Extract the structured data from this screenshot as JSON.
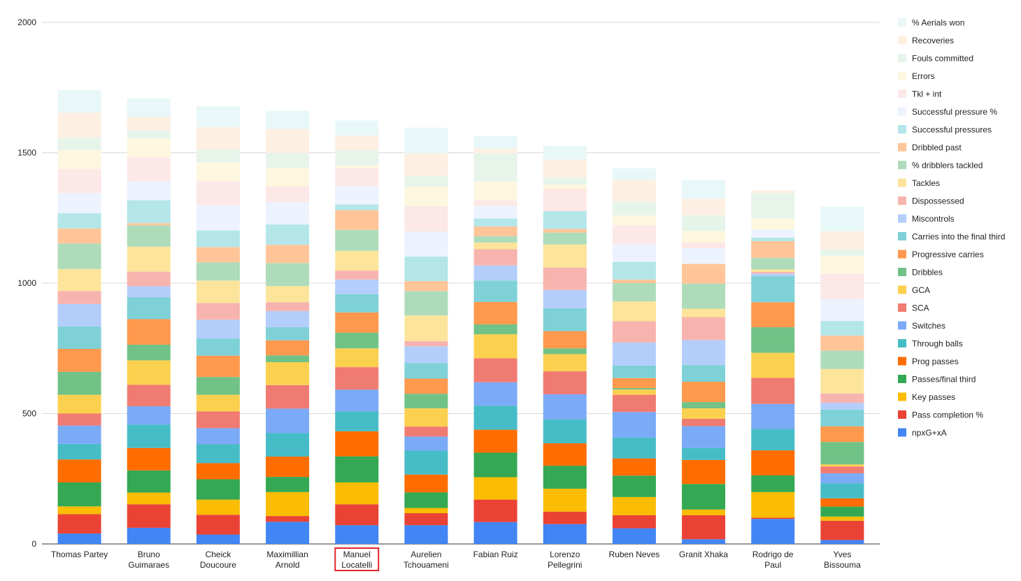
{
  "chart_data": {
    "type": "bar",
    "stacked": true,
    "grid": true,
    "legend_position": "right",
    "ylim": [
      0,
      2000
    ],
    "yticks": [
      0,
      500,
      1000,
      1500,
      2000
    ],
    "highlighted_category": "Manuel Locatelli",
    "highlight_color": "#e0262b",
    "categories": [
      [
        "Thomas Partey"
      ],
      [
        "Bruno",
        "Guimaraes"
      ],
      [
        "Cheick",
        "Doucoure"
      ],
      [
        "Maximillian",
        "Arnold"
      ],
      [
        "Manuel",
        "Locatelli"
      ],
      [
        "Aurelien",
        "Tchouameni"
      ],
      [
        "Fabian Ruiz"
      ],
      [
        "Lorenzo",
        "Pellegrini"
      ],
      [
        "Ruben Neves"
      ],
      [
        "Granit Xhaka"
      ],
      [
        "Rodrigo de",
        "Paul"
      ],
      [
        "Yves",
        "Bissouma"
      ]
    ],
    "series": [
      {
        "name": "npxG+xA",
        "color": "#4285f4",
        "values": [
          40,
          62,
          36,
          85,
          72,
          72,
          84,
          76,
          60,
          18,
          96,
          15
        ]
      },
      {
        "name": "Pass completion %",
        "color": "#ea4335",
        "values": [
          74,
          90,
          76,
          22,
          80,
          46,
          86,
          48,
          50,
          92,
          5,
          74
        ]
      },
      {
        "name": "Key passes",
        "color": "#fbbc04",
        "values": [
          30,
          45,
          58,
          92,
          84,
          20,
          86,
          88,
          70,
          22,
          98,
          16
        ]
      },
      {
        "name": "Passes/final third",
        "color": "#34a853",
        "values": [
          92,
          85,
          78,
          58,
          100,
          60,
          94,
          88,
          82,
          98,
          64,
          38
        ]
      },
      {
        "name": "Prog passes",
        "color": "#ff6d01",
        "values": [
          88,
          86,
          62,
          78,
          96,
          68,
          88,
          86,
          66,
          92,
          96,
          32
        ]
      },
      {
        "name": "Through balls",
        "color": "#46bdc6",
        "values": [
          60,
          90,
          72,
          90,
          76,
          92,
          92,
          92,
          80,
          46,
          82,
          58
        ]
      },
      {
        "name": "Switches",
        "color": "#7baaf7",
        "values": [
          70,
          70,
          62,
          94,
          84,
          54,
          90,
          96,
          98,
          84,
          96,
          38
        ]
      },
      {
        "name": "SCA",
        "color": "#f07b72",
        "values": [
          46,
          82,
          64,
          90,
          86,
          38,
          92,
          88,
          66,
          28,
          100,
          26
        ]
      },
      {
        "name": "GCA",
        "color": "#fcd04f",
        "values": [
          72,
          94,
          64,
          88,
          72,
          70,
          92,
          66,
          20,
          40,
          96,
          8
        ]
      },
      {
        "name": "Dribbles",
        "color": "#71c287",
        "values": [
          88,
          60,
          68,
          26,
          60,
          56,
          38,
          22,
          6,
          24,
          98,
          86
        ]
      },
      {
        "name": "Progressive carries",
        "color": "#ff994d",
        "values": [
          88,
          98,
          82,
          58,
          78,
          58,
          86,
          66,
          38,
          78,
          96,
          60
        ]
      },
      {
        "name": "Carries into the final third",
        "color": "#7ed1d7",
        "values": [
          86,
          84,
          66,
          50,
          70,
          60,
          82,
          88,
          48,
          64,
          100,
          64
        ]
      },
      {
        "name": "Miscontrols",
        "color": "#b3cefb",
        "values": [
          86,
          42,
          72,
          62,
          56,
          64,
          58,
          70,
          88,
          96,
          10,
          26
        ]
      },
      {
        "name": "Dispossessed",
        "color": "#f7b4ae",
        "values": [
          50,
          56,
          64,
          34,
          34,
          20,
          62,
          86,
          82,
          88,
          6,
          36
        ]
      },
      {
        "name": "Tackles",
        "color": "#fde49b",
        "values": [
          84,
          96,
          86,
          62,
          76,
          98,
          26,
          88,
          76,
          32,
          10,
          94
        ]
      },
      {
        "name": "% dribblers tackled",
        "color": "#aedcba",
        "values": [
          98,
          82,
          70,
          88,
          80,
          94,
          24,
          46,
          70,
          96,
          44,
          70
        ]
      },
      {
        "name": "Dribbled past",
        "color": "#ffc599",
        "values": [
          58,
          8,
          58,
          70,
          76,
          38,
          38,
          14,
          14,
          76,
          64,
          58
        ]
      },
      {
        "name": "Successful pressures",
        "color": "#b4e6e9",
        "values": [
          58,
          88,
          64,
          78,
          22,
          94,
          30,
          68,
          68,
          0,
          14,
          56
        ]
      },
      {
        "name": "Successful pressure %",
        "color": "#ecf3fe",
        "values": [
          78,
          72,
          96,
          86,
          70,
          96,
          48,
          0,
          68,
          60,
          30,
          84
        ]
      },
      {
        "name": "Tkl + int",
        "color": "#fce8e6",
        "values": [
          92,
          94,
          92,
          60,
          70,
          98,
          22,
          86,
          72,
          22,
          0,
          96
        ]
      },
      {
        "name": "Errors",
        "color": "#fef7e0",
        "values": [
          72,
          72,
          74,
          72,
          10,
          74,
          72,
          16,
          38,
          44,
          44,
          70
        ]
      },
      {
        "name": "Fouls committed",
        "color": "#e6f4ea",
        "values": [
          48,
          30,
          48,
          56,
          58,
          42,
          108,
          28,
          52,
          60,
          96,
          24
        ]
      },
      {
        "name": "Recoveries",
        "color": "#feefe3",
        "values": [
          96,
          52,
          86,
          92,
          56,
          86,
          18,
          68,
          84,
          64,
          10,
          70
        ]
      },
      {
        "name": "% Aerials won",
        "color": "#e8f7f8",
        "values": [
          86,
          70,
          80,
          70,
          58,
          98,
          48,
          52,
          44,
          72,
          0,
          94
        ]
      }
    ]
  }
}
